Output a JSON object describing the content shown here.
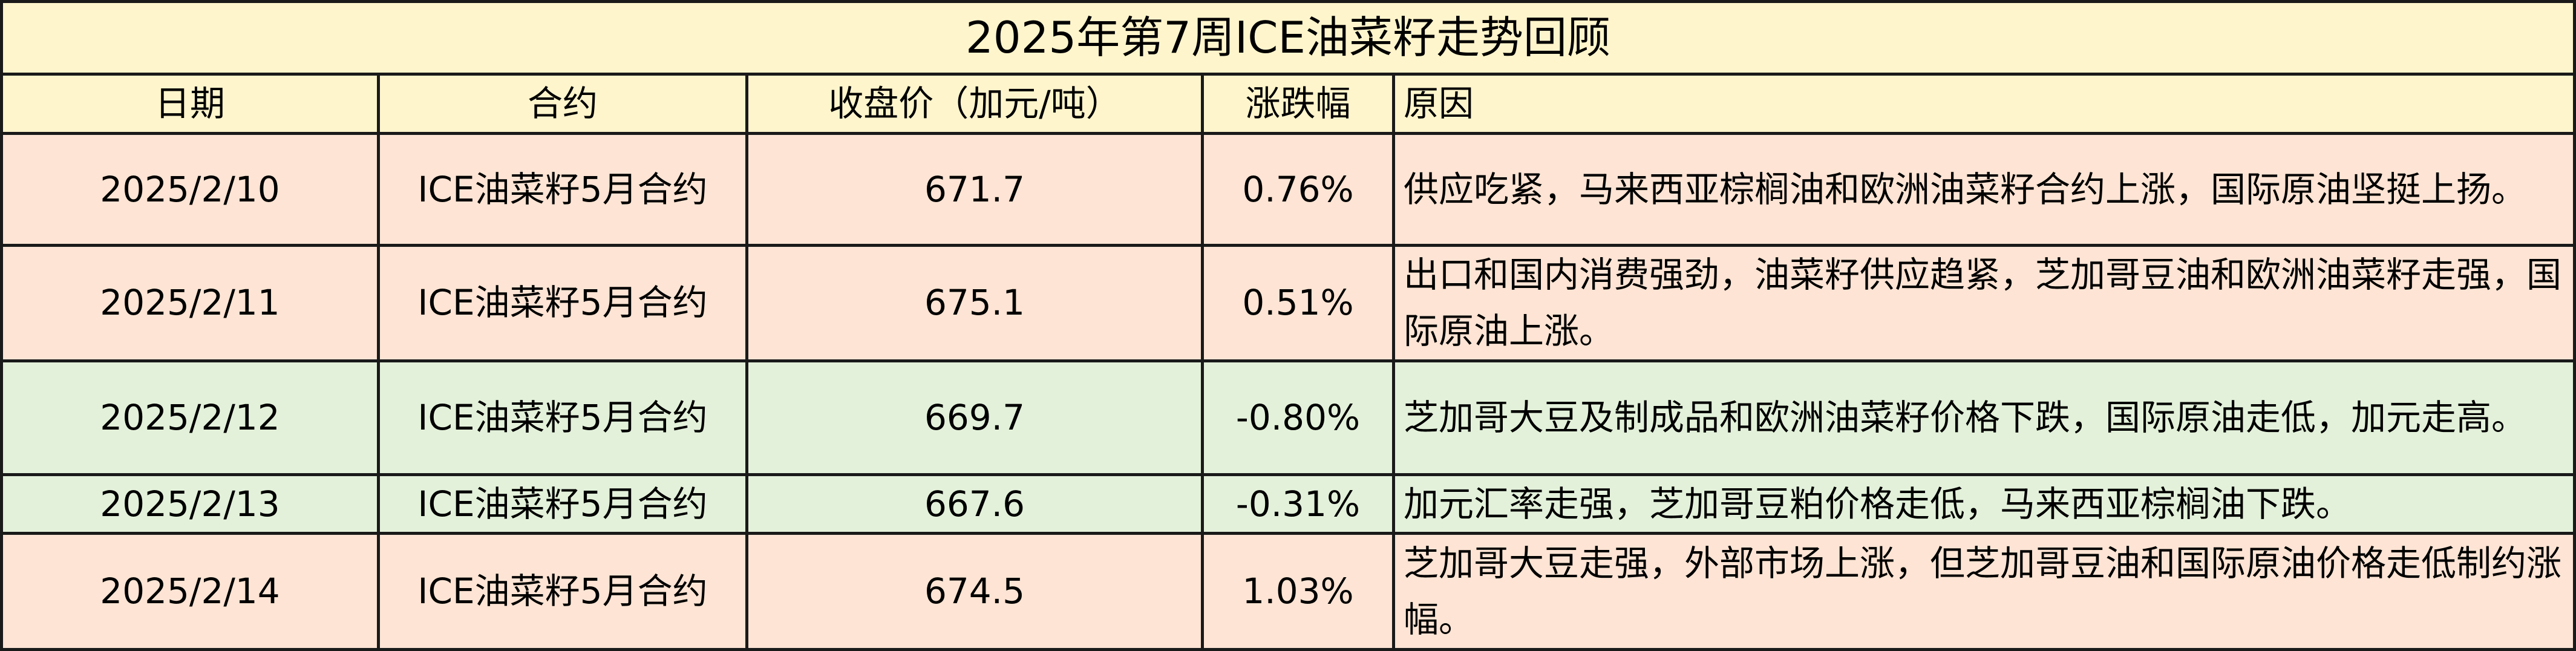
{
  "title": "2025年第7周ICE油菜籽走势回顾",
  "headers": {
    "date": "日期",
    "contract": "合约",
    "price": "收盘价（加元/吨）",
    "change": "涨跌幅",
    "reason": "原因"
  },
  "colors": {
    "header_bg": "#FFF5CC",
    "up_row_bg": "#FDE4D4",
    "down_row_bg": "#E3F1DA"
  },
  "rows": [
    {
      "date": "2025/2/10",
      "contract": "ICE油菜籽5月合约",
      "price": "671.7",
      "change": "0.76%",
      "reason": "供应吃紧，马来西亚棕榈油和欧洲油菜籽合约上涨，国际原油坚挺上扬。"
    },
    {
      "date": "2025/2/11",
      "contract": "ICE油菜籽5月合约",
      "price": "675.1",
      "change": "0.51%",
      "reason": "出口和国内消费强劲，油菜籽供应趋紧，芝加哥豆油和欧洲油菜籽走强，国际原油上涨。"
    },
    {
      "date": "2025/2/12",
      "contract": "ICE油菜籽5月合约",
      "price": "669.7",
      "change": "-0.80%",
      "reason": "芝加哥大豆及制成品和欧洲油菜籽价格下跌，国际原油走低，加元走高。"
    },
    {
      "date": "2025/2/13",
      "contract": "ICE油菜籽5月合约",
      "price": "667.6",
      "change": "-0.31%",
      "reason": "加元汇率走强，芝加哥豆粕价格走低，马来西亚棕榈油下跌。"
    },
    {
      "date": "2025/2/14",
      "contract": "ICE油菜籽5月合约",
      "price": "674.5",
      "change": "1.03%",
      "reason": "芝加哥大豆走强，外部市场上涨，但芝加哥豆油和国际原油价格走低制约涨幅。"
    }
  ]
}
